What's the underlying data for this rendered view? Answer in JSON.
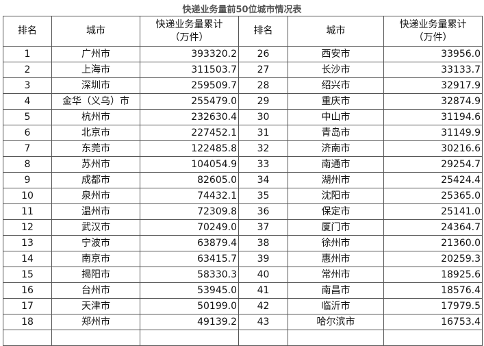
{
  "title": "快递业务量前50位城市情况表",
  "headers": {
    "rank": "排名",
    "city": "城市",
    "value_line1": "快递业务量累计",
    "value_line2": "（万件）"
  },
  "rows_left": [
    {
      "rank": "1",
      "city": "广州市",
      "value": "393320.2"
    },
    {
      "rank": "2",
      "city": "上海市",
      "value": "311503.7"
    },
    {
      "rank": "3",
      "city": "深圳市",
      "value": "259509.7"
    },
    {
      "rank": "4",
      "city": "金华（义乌）市",
      "value": "255479.0"
    },
    {
      "rank": "5",
      "city": "杭州市",
      "value": "232630.4"
    },
    {
      "rank": "6",
      "city": "北京市",
      "value": "227452.1"
    },
    {
      "rank": "7",
      "city": "东莞市",
      "value": "122485.8"
    },
    {
      "rank": "8",
      "city": "苏州市",
      "value": "104054.9"
    },
    {
      "rank": "9",
      "city": "成都市",
      "value": "82605.0"
    },
    {
      "rank": "10",
      "city": "泉州市",
      "value": "74432.1"
    },
    {
      "rank": "11",
      "city": "温州市",
      "value": "72309.8"
    },
    {
      "rank": "12",
      "city": "武汉市",
      "value": "70249.0"
    },
    {
      "rank": "13",
      "city": "宁波市",
      "value": "63879.4"
    },
    {
      "rank": "14",
      "city": "南京市",
      "value": "63415.7"
    },
    {
      "rank": "15",
      "city": "揭阳市",
      "value": "58330.3"
    },
    {
      "rank": "16",
      "city": "台州市",
      "value": "53945.0"
    },
    {
      "rank": "17",
      "city": "天津市",
      "value": "50199.0"
    },
    {
      "rank": "18",
      "city": "郑州市",
      "value": "49139.2"
    }
  ],
  "rows_right": [
    {
      "rank": "26",
      "city": "西安市",
      "value": "33956.0"
    },
    {
      "rank": "27",
      "city": "长沙市",
      "value": "33133.7"
    },
    {
      "rank": "28",
      "city": "绍兴市",
      "value": "32917.9"
    },
    {
      "rank": "29",
      "city": "重庆市",
      "value": "32874.9"
    },
    {
      "rank": "30",
      "city": "中山市",
      "value": "31194.6"
    },
    {
      "rank": "31",
      "city": "青岛市",
      "value": "31149.9"
    },
    {
      "rank": "32",
      "city": "济南市",
      "value": "30216.6"
    },
    {
      "rank": "33",
      "city": "南通市",
      "value": "29254.7"
    },
    {
      "rank": "34",
      "city": "湖州市",
      "value": "25424.4"
    },
    {
      "rank": "35",
      "city": "沈阳市",
      "value": "25365.0"
    },
    {
      "rank": "36",
      "city": "保定市",
      "value": "25141.0"
    },
    {
      "rank": "37",
      "city": "厦门市",
      "value": "24364.7"
    },
    {
      "rank": "38",
      "city": "徐州市",
      "value": "21360.0"
    },
    {
      "rank": "39",
      "city": "惠州市",
      "value": "20259.3"
    },
    {
      "rank": "40",
      "city": "常州市",
      "value": "18925.6"
    },
    {
      "rank": "41",
      "city": "南昌市",
      "value": "18576.4"
    },
    {
      "rank": "42",
      "city": "临沂市",
      "value": "17979.5"
    },
    {
      "rank": "43",
      "city": "哈尔滨市",
      "value": "16753.4"
    }
  ]
}
